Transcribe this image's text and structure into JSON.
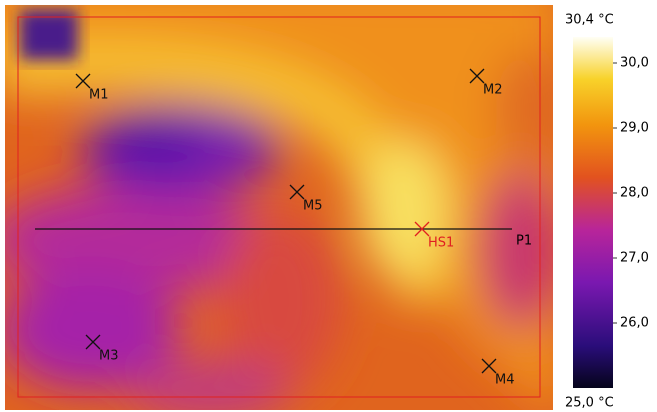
{
  "colorbar": {
    "range": [
      {
        "value": 25.0,
        "label": "25,0 °C"
      },
      {
        "value": 30.4,
        "label": "30,4 °C"
      }
    ],
    "ticks": [
      {
        "value": 30.0,
        "label": "30,0"
      },
      {
        "value": 29.0,
        "label": "29,0"
      },
      {
        "value": 28.0,
        "label": "28,0"
      },
      {
        "value": 27.0,
        "label": "27,0"
      },
      {
        "value": 26.0,
        "label": "26,0"
      }
    ]
  },
  "markers": [
    {
      "label": "M1"
    },
    {
      "label": "M2"
    },
    {
      "label": "M5"
    },
    {
      "label": "HS1"
    },
    {
      "label": "M3"
    },
    {
      "label": "M4"
    }
  ],
  "profile": {
    "label": "P1"
  }
}
